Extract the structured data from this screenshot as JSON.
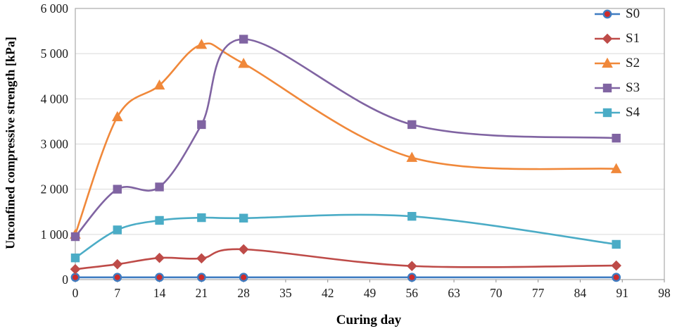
{
  "chart_data": {
    "type": "line",
    "title": "",
    "xlabel": "Curing day",
    "ylabel": "Unconfined compressive strength [kPa]",
    "xlim": [
      0,
      98
    ],
    "ylim": [
      0,
      6000
    ],
    "grid": "horizontal",
    "legend_position": "top-right",
    "smooth": true,
    "x": [
      0,
      7,
      14,
      21,
      28,
      56,
      90
    ],
    "x_ticks": [
      0,
      7,
      14,
      21,
      28,
      35,
      42,
      49,
      56,
      63,
      70,
      77,
      84,
      91,
      98
    ],
    "y_ticks": [
      0,
      1000,
      2000,
      3000,
      4000,
      5000,
      6000
    ],
    "y_tick_labels": [
      "0",
      "1 000",
      "2 000",
      "3 000",
      "4 000",
      "5 000",
      "6 000"
    ],
    "colors": {
      "grid": "#D9D9D9",
      "border": "#ABABAB",
      "tick": "#8C8C8C",
      "text": "#1a1a1a"
    },
    "series": [
      {
        "name": "S0",
        "color": "#3F7CC1",
        "marker": "circle",
        "marker_fill": "#CE2B2B",
        "values": [
          50,
          50,
          50,
          50,
          50,
          50,
          50
        ]
      },
      {
        "name": "S1",
        "color": "#BE4B48",
        "marker": "diamond",
        "marker_fill": "#BE4B48",
        "values": [
          230,
          340,
          480,
          470,
          670,
          300,
          310
        ]
      },
      {
        "name": "S2",
        "color": "#F0883A",
        "marker": "triangle",
        "marker_fill": "#F0883A",
        "values": [
          1000,
          3600,
          4300,
          5200,
          4780,
          2700,
          2450
        ]
      },
      {
        "name": "S3",
        "color": "#8064A2",
        "marker": "square",
        "marker_fill": "#8064A2",
        "values": [
          950,
          2000,
          2050,
          3430,
          5320,
          3430,
          3130
        ]
      },
      {
        "name": "S4",
        "color": "#4BACC6",
        "marker": "square",
        "marker_fill": "#4BACC6",
        "values": [
          480,
          1100,
          1310,
          1370,
          1360,
          1400,
          780
        ]
      }
    ]
  }
}
